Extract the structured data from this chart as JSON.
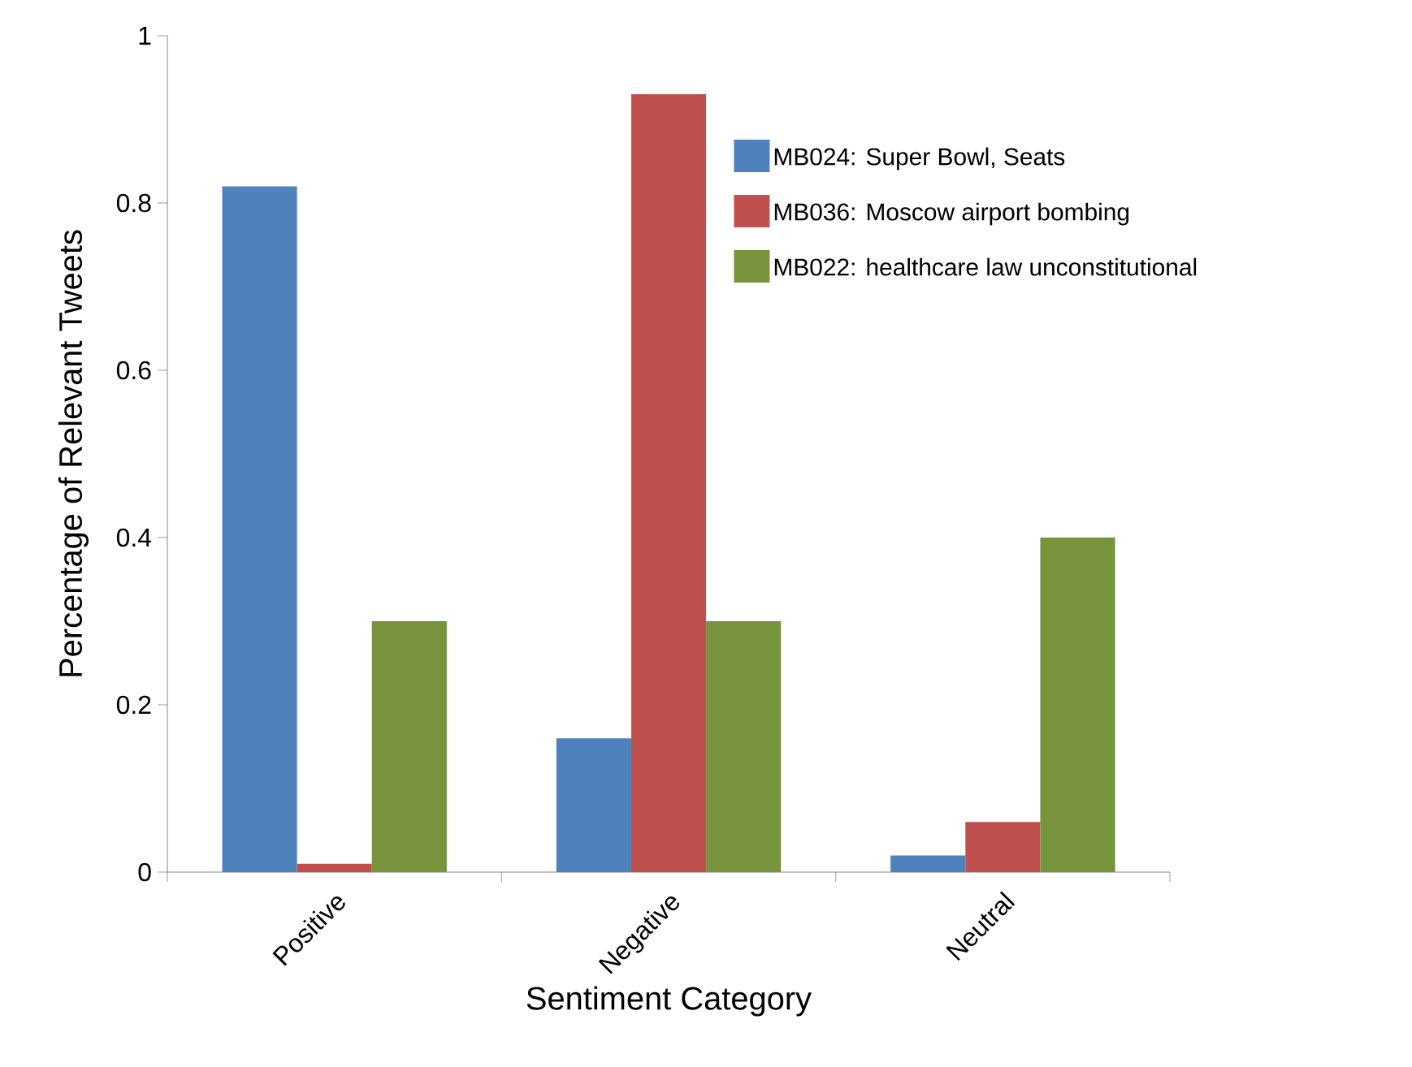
{
  "chart_data": {
    "type": "bar",
    "xlabel": "Sentiment Category",
    "ylabel": "Percentage of Relevant Tweets",
    "categories": [
      "Positive",
      "Negative",
      "Neutral"
    ],
    "series": [
      {
        "name": "MB024: Super Bowl, Seats",
        "color": "#4f81bd",
        "values": [
          0.82,
          0.16,
          0.02
        ]
      },
      {
        "name": "MB036: Moscow airport bombing",
        "color": "#c0504d",
        "values": [
          0.01,
          0.93,
          0.06
        ]
      },
      {
        "name": "MB022: healthcare law unconstitutional",
        "color": "#77933c",
        "values": [
          0.3,
          0.3,
          0.4
        ]
      }
    ],
    "ylim": [
      0,
      1
    ],
    "yticks": [
      0,
      0.2,
      0.4,
      0.6,
      0.8,
      1
    ],
    "grid": false,
    "legend": "top right"
  }
}
